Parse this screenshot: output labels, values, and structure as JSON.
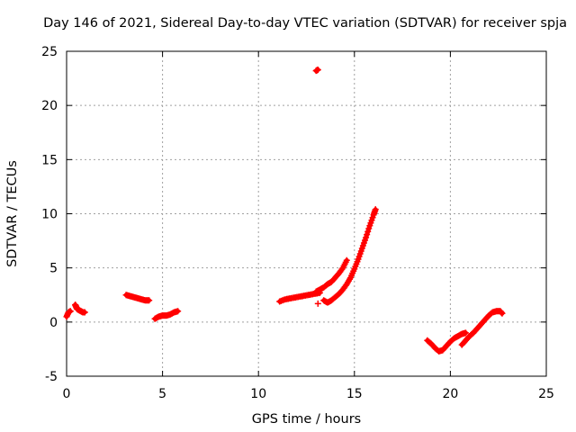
{
  "chart_data": {
    "type": "scatter",
    "title": "Day 146 of 2021, Sidereal Day-to-day VTEC variation (SDTVAR) for receiver spja",
    "xlabel": "GPS time / hours",
    "ylabel": "SDTVAR / TECUs",
    "xlim": [
      0,
      25
    ],
    "ylim": [
      -5,
      25
    ],
    "xticks": [
      0,
      5,
      10,
      15,
      20,
      25
    ],
    "yticks": [
      -5,
      0,
      5,
      10,
      15,
      20,
      25
    ],
    "grid": true,
    "legend": "none",
    "marker": "+",
    "color": "#ff0000",
    "segments": [
      {
        "name": "seg1",
        "x": [
          0.0,
          0.1,
          0.2
        ],
        "y": [
          0.5,
          0.9,
          1.0
        ]
      },
      {
        "name": "seg2",
        "x": [
          0.45,
          0.5,
          0.55,
          0.65,
          0.75,
          0.85,
          0.95
        ],
        "y": [
          1.6,
          1.4,
          1.2,
          1.1,
          1.0,
          0.9,
          0.9
        ]
      },
      {
        "name": "seg3",
        "x": [
          3.1,
          3.3,
          3.5,
          3.7,
          3.9,
          4.1,
          4.3
        ],
        "y": [
          2.5,
          2.4,
          2.3,
          2.2,
          2.1,
          2.0,
          2.0
        ]
      },
      {
        "name": "seg4",
        "x": [
          4.6,
          4.8,
          5.0,
          5.2,
          5.4,
          5.6,
          5.8
        ],
        "y": [
          0.3,
          0.5,
          0.6,
          0.6,
          0.7,
          0.9,
          1.0
        ]
      },
      {
        "name": "seg5",
        "x": [
          11.1,
          11.4,
          11.7,
          12.0,
          12.3,
          12.6,
          12.9,
          13.2
        ],
        "y": [
          1.9,
          2.1,
          2.2,
          2.3,
          2.4,
          2.5,
          2.6,
          2.7
        ]
      },
      {
        "name": "seg6",
        "x": [
          13.0,
          13.2,
          13.4,
          13.6,
          13.8,
          14.0,
          14.2,
          14.4,
          14.6
        ],
        "y": [
          2.8,
          3.0,
          3.2,
          3.5,
          3.7,
          4.1,
          4.5,
          5.0,
          5.7
        ]
      },
      {
        "name": "seg7",
        "x": [
          13.4,
          13.6,
          13.8,
          14.0,
          14.2,
          14.4,
          14.6,
          14.8,
          15.0,
          15.2,
          15.4,
          15.6,
          15.8,
          16.0,
          16.1
        ],
        "y": [
          2.0,
          1.8,
          2.0,
          2.3,
          2.6,
          3.0,
          3.5,
          4.1,
          4.9,
          5.8,
          6.8,
          7.8,
          8.9,
          9.9,
          10.4
        ]
      },
      {
        "name": "seg8",
        "x": [
          18.8,
          19.0,
          19.2,
          19.4,
          19.6,
          19.8,
          20.0,
          20.2,
          20.4,
          20.6,
          20.8
        ],
        "y": [
          -1.7,
          -2.0,
          -2.4,
          -2.7,
          -2.6,
          -2.2,
          -1.8,
          -1.5,
          -1.3,
          -1.1,
          -1.0
        ]
      },
      {
        "name": "seg9",
        "x": [
          20.6,
          20.8,
          21.0,
          21.2,
          21.4,
          21.6,
          21.8,
          22.0,
          22.2,
          22.4,
          22.6,
          22.7
        ],
        "y": [
          -2.1,
          -1.7,
          -1.3,
          -1.0,
          -0.6,
          -0.2,
          0.2,
          0.6,
          0.9,
          1.0,
          1.0,
          0.8
        ]
      },
      {
        "name": "seg10",
        "x": [
          13.0,
          13.1
        ],
        "y": [
          23.2,
          23.3
        ]
      },
      {
        "name": "seg11",
        "x": [
          13.1
        ],
        "y": [
          1.7
        ]
      }
    ]
  }
}
